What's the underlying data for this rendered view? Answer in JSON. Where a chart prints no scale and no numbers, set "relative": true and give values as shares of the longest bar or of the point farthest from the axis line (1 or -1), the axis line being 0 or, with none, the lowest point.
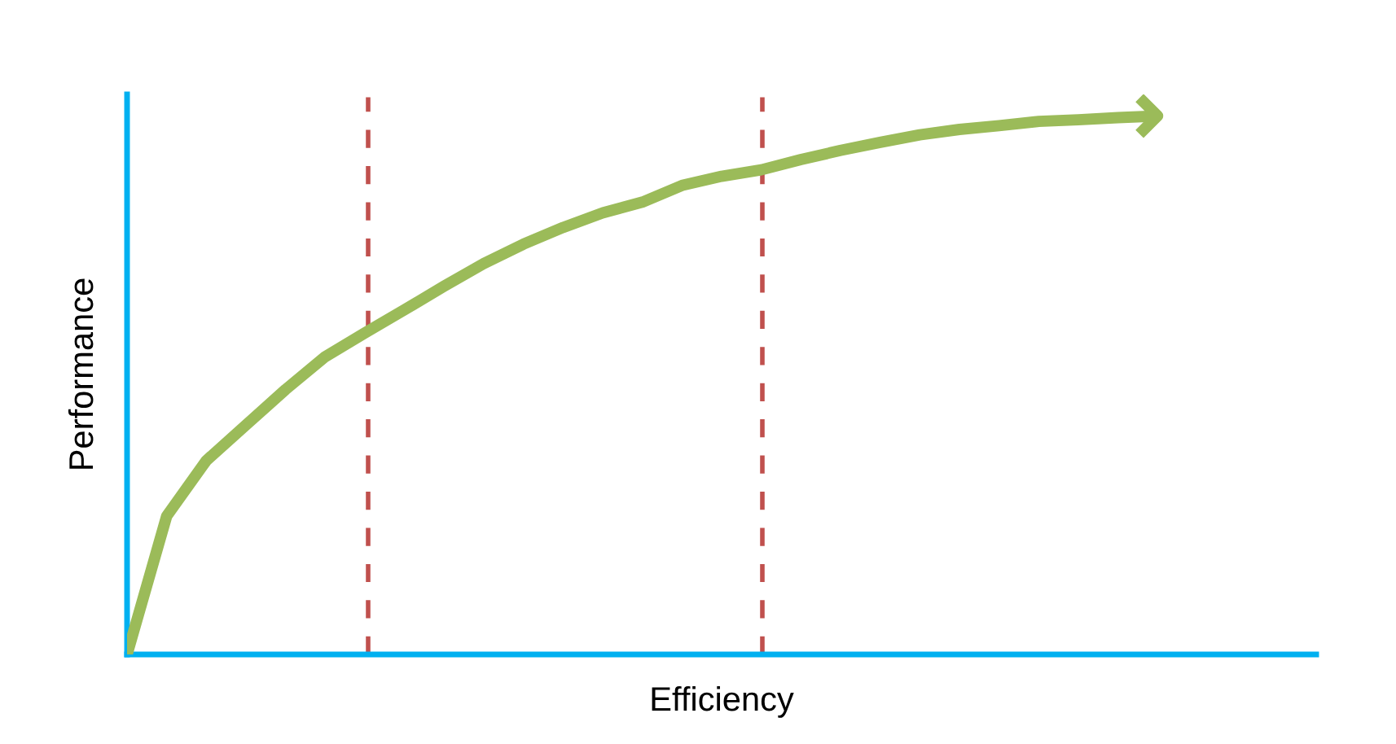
{
  "chart_data": {
    "type": "line",
    "relative": true,
    "xlabel": "Efficiency",
    "ylabel": "Performance",
    "tick_labels": false,
    "line_style": "solid",
    "categories": [
      null,
      null,
      null,
      null,
      null,
      null,
      null,
      null,
      null,
      null,
      null,
      null,
      null,
      null,
      null,
      null,
      null,
      null,
      null,
      null,
      null,
      null,
      null,
      null,
      null,
      null,
      null,
      null,
      null,
      null,
      null
    ],
    "series": [
      {
        "color": "#9bbb59",
        "values": [
          0,
          0.257,
          0.36,
          0.426,
          0.492,
          0.553,
          0.597,
          0.64,
          0.684,
          0.726,
          0.762,
          0.793,
          0.82,
          0.84,
          0.871,
          0.888,
          0.9,
          0.919,
          0.936,
          0.951,
          0.965,
          0.975,
          0.982,
          0.99,
          0.993,
          0.997,
          1.0,
          null,
          null,
          null,
          null
        ]
      }
    ]
  }
}
